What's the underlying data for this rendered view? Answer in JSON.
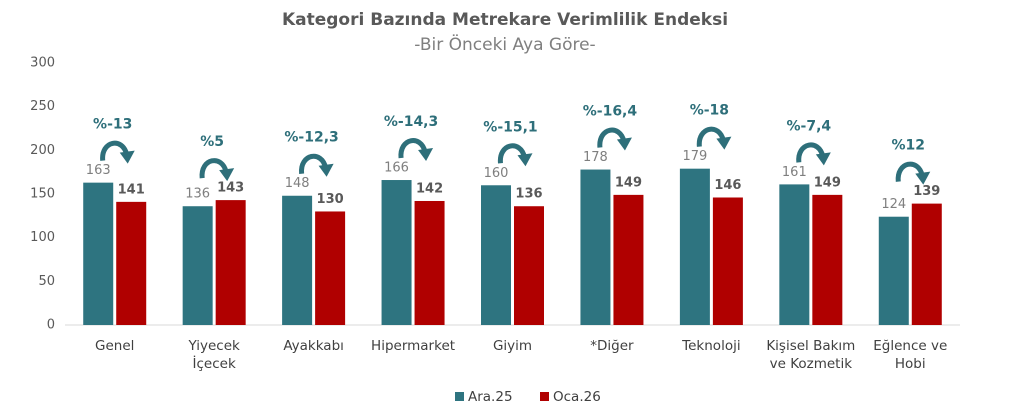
{
  "chart_data": {
    "type": "bar",
    "title": "Kategori Bazında Metrekare Verimlilik Endeksi",
    "subtitle": "-Bir Önceki Aya Göre-",
    "categories": [
      "Genel",
      "Yiyecek\nİçecek",
      "Ayakkabı",
      "Hipermarket",
      "Giyim",
      "*Diğer",
      "Teknoloji",
      "Kişisel Bakım\nve Kozmetik",
      "Eğlence ve\nHobi"
    ],
    "series": [
      {
        "name": "Ara.25",
        "color": "#2e7480",
        "values": [
          163,
          136,
          148,
          166,
          160,
          178,
          179,
          161,
          124
        ]
      },
      {
        "name": "Oca.26",
        "color": "#b00000",
        "values": [
          141,
          143,
          130,
          142,
          136,
          149,
          146,
          149,
          139
        ]
      }
    ],
    "annotations": [
      "%-13",
      "%5",
      "%-12,3",
      "%-14,3",
      "%-15,1",
      "%-16,4",
      "%-18",
      "%-7,4",
      "%12"
    ],
    "ylim": [
      0,
      300
    ],
    "yticks": [
      0,
      50,
      100,
      150,
      200,
      250,
      300
    ],
    "grid": false,
    "legend": "bottom"
  }
}
